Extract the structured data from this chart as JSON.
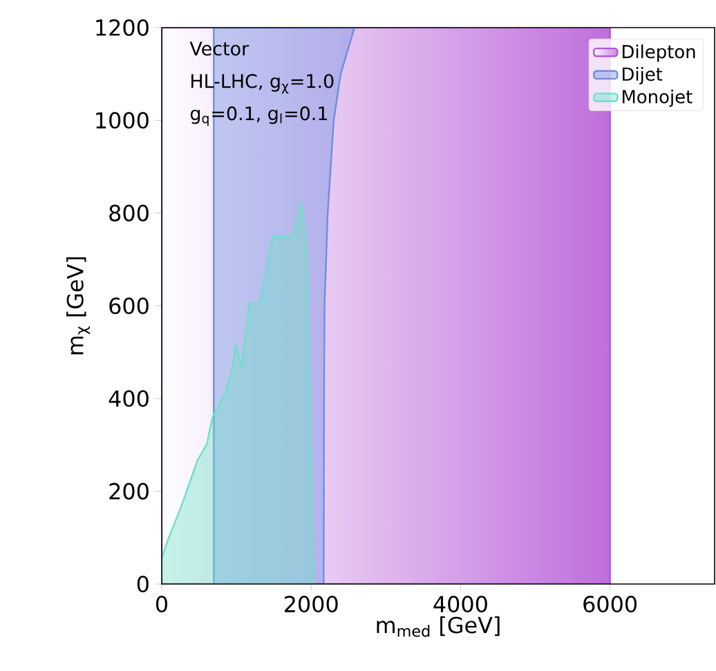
{
  "chart_data": {
    "type": "area",
    "xlabel": "m$_{med}$ [GeV]",
    "ylabel": "m$_{χ}$ [GeV]",
    "annotations": [
      "Vector",
      "HL-LHC, g$_{χ}$=1.0",
      "g$_{q}$=0.1, g$_{l}$=0.1"
    ],
    "xlim": [
      0,
      7400
    ],
    "ylim": [
      0,
      1200
    ],
    "xticks": [
      0,
      2000,
      4000,
      6000
    ],
    "yticks": [
      0,
      200,
      400,
      600,
      800,
      1000,
      1200
    ],
    "legend": "top right",
    "series": [
      {
        "name": "Dilepton",
        "color": "#b455d6",
        "x": [
          0,
          6000
        ],
        "values": [
          1200,
          1200
        ]
      },
      {
        "name": "Dijet",
        "color": "#6a8fe0",
        "x": [
          697,
          697,
          2580,
          2395,
          2302,
          2222,
          2179,
          2173,
          2167
        ],
        "values": [
          0,
          1200,
          1200,
          1100,
          1000,
          800,
          600,
          400,
          0
        ]
      },
      {
        "name": "Monojet",
        "color": "#6fe0c8",
        "x": [
          0,
          80,
          265,
          481,
          605,
          636,
          685,
          852,
          944,
          994,
          1068,
          1173,
          1315,
          1481,
          1747,
          1870,
          1944,
          2025
        ],
        "values": [
          55,
          94,
          169,
          268,
          302,
          327,
          362,
          412,
          466,
          516,
          466,
          605,
          605,
          749,
          749,
          823,
          704,
          0
        ]
      }
    ]
  }
}
